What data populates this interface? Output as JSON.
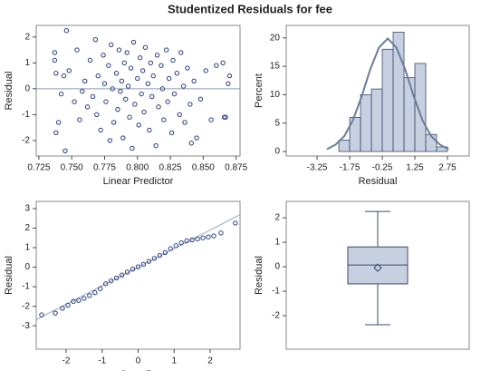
{
  "title": "Studentized Residuals for fee",
  "chart_data": [
    {
      "type": "scatter",
      "xlabel": "Linear Predictor",
      "ylabel": "Residual",
      "color": "#2b3d7a",
      "reference_y": 0,
      "xlim": [
        0.723,
        0.878
      ],
      "ylim": [
        -2.6,
        2.45
      ],
      "xticks": [
        0.725,
        {
          "value": 0.75,
          "label": "0.750"
        },
        0.775,
        {
          "value": 0.8,
          "label": "0.800"
        },
        0.825,
        {
          "value": 0.85,
          "label": "0.850"
        },
        0.875
      ],
      "yticks": [
        -2,
        -1,
        0,
        1,
        2
      ],
      "x": [
        0.737,
        0.737,
        0.738,
        0.74,
        0.738,
        0.742,
        0.744,
        0.745,
        0.746,
        0.748,
        0.752,
        0.754,
        0.756,
        0.758,
        0.76,
        0.762,
        0.764,
        0.766,
        0.768,
        0.769,
        0.77,
        0.772,
        0.774,
        0.775,
        0.776,
        0.778,
        0.779,
        0.78,
        0.781,
        0.782,
        0.784,
        0.785,
        0.786,
        0.787,
        0.788,
        0.789,
        0.79,
        0.791,
        0.792,
        0.793,
        0.794,
        0.795,
        0.796,
        0.797,
        0.798,
        0.8,
        0.801,
        0.802,
        0.803,
        0.804,
        0.805,
        0.806,
        0.808,
        0.809,
        0.81,
        0.811,
        0.812,
        0.814,
        0.815,
        0.816,
        0.818,
        0.819,
        0.82,
        0.822,
        0.823,
        0.824,
        0.826,
        0.827,
        0.828,
        0.83,
        0.832,
        0.833,
        0.835,
        0.836,
        0.838,
        0.84,
        0.841,
        0.843,
        0.845,
        0.848,
        0.852,
        0.856,
        0.86,
        0.865,
        0.866,
        0.867,
        0.869,
        0.87
      ],
      "values": [
        1.4,
        1.1,
        0.6,
        -1.3,
        -1.7,
        -0.2,
        0.5,
        -2.4,
        2.25,
        0.7,
        -0.5,
        1.5,
        -1.2,
        -0.1,
        0.3,
        -0.7,
        1.1,
        -0.3,
        1.9,
        -1.0,
        0.5,
        -1.6,
        1.3,
        0.2,
        -0.5,
        0.9,
        -2.0,
        1.7,
        0.0,
        -1.3,
        0.6,
        -0.8,
        1.5,
        -0.1,
        0.3,
        -1.9,
        1.0,
        -0.4,
        1.4,
        0.1,
        -1.1,
        0.8,
        -2.3,
        1.8,
        -0.6,
        0.4,
        -1.4,
        1.2,
        -0.2,
        0.7,
        -0.9,
        1.6,
        0.2,
        -1.6,
        1.0,
        -0.3,
        0.5,
        -2.2,
        1.3,
        -0.7,
        0.9,
        0.0,
        -1.2,
        1.5,
        -0.5,
        0.4,
        -1.7,
        1.1,
        -0.2,
        0.6,
        -1.0,
        1.4,
        0.1,
        -1.3,
        0.8,
        -0.6,
        -2.1,
        0.3,
        -1.9,
        -0.4,
        0.7,
        -1.2,
        0.9,
        1.0,
        -1.1,
        -1.1,
        0.2,
        0.5
      ]
    },
    {
      "type": "histogram",
      "xlabel": "Residual",
      "ylabel": "Percent",
      "color": "#c6d0e0",
      "edge_color": "#3a4a6b",
      "curve_color": "#6d7b99",
      "xlim": [
        -4.67,
        3.75
      ],
      "ylim": [
        -0.8,
        22.2
      ],
      "xticks": [
        -3.25,
        -1.75,
        -0.25,
        1.25,
        2.75
      ],
      "yticks": [
        0,
        5,
        10,
        15,
        20
      ],
      "bins": [
        -2.25,
        -1.75,
        -1.25,
        -0.75,
        -0.25,
        0.25,
        0.75,
        1.25,
        1.75,
        2.25,
        2.75
      ],
      "counts": [
        2,
        6,
        10,
        11,
        18,
        21,
        13,
        15.5,
        3,
        0.8
      ],
      "curve": {
        "x": [
          -2.8,
          -2.4,
          -2.0,
          -1.6,
          -1.2,
          -0.8,
          -0.4,
          0,
          0.4,
          0.8,
          1.2,
          1.6,
          2.0,
          2.4,
          2.8
        ],
        "values": [
          0.4,
          1.2,
          2.7,
          5.5,
          9.7,
          14.5,
          18.3,
          19.9,
          18.3,
          14.5,
          9.7,
          5.5,
          2.7,
          1.2,
          0.4
        ]
      }
    },
    {
      "type": "qq",
      "xlabel": "Quantile",
      "ylabel": "Residual",
      "color": "#2b3d7a",
      "line_color": "#a9b4cc",
      "xlim": [
        -2.83,
        2.83
      ],
      "ylim": [
        -4.2,
        3.37
      ],
      "xticks": [
        -2,
        -1,
        0,
        1,
        2
      ],
      "yticks": [
        -3,
        -2,
        -1,
        0,
        1,
        2,
        3
      ],
      "reference_line": {
        "intercept": 0,
        "slope": 0.95
      },
      "x": [
        -2.68,
        -2.3,
        -2.1,
        -1.95,
        -1.8,
        -1.65,
        -1.5,
        -1.35,
        -1.2,
        -1.05,
        -0.9,
        -0.75,
        -0.6,
        -0.45,
        -0.3,
        -0.15,
        0,
        0.15,
        0.3,
        0.45,
        0.6,
        0.75,
        0.9,
        1.05,
        1.2,
        1.35,
        1.5,
        1.65,
        1.8,
        1.95,
        2.1,
        2.3,
        2.7
      ],
      "values": [
        -2.44,
        -2.35,
        -2.1,
        -1.95,
        -1.75,
        -1.7,
        -1.6,
        -1.45,
        -1.3,
        -1.1,
        -0.85,
        -0.7,
        -0.55,
        -0.4,
        -0.25,
        -0.1,
        0.02,
        0.15,
        0.3,
        0.45,
        0.6,
        0.75,
        0.95,
        1.1,
        1.25,
        1.35,
        1.4,
        1.45,
        1.5,
        1.55,
        1.6,
        1.75,
        2.26
      ]
    },
    {
      "type": "box",
      "ylabel": "Residual",
      "color": "#c6d0e0",
      "edge_color": "#3a4a6b",
      "ylim": [
        -3.37,
        2.67
      ],
      "yticks": [
        -2,
        -1,
        0,
        1,
        2
      ],
      "whisker_low": -2.37,
      "q1": -0.7,
      "median": 0.07,
      "mean": -0.04,
      "q3": 0.81,
      "whisker_high": 2.26
    }
  ]
}
